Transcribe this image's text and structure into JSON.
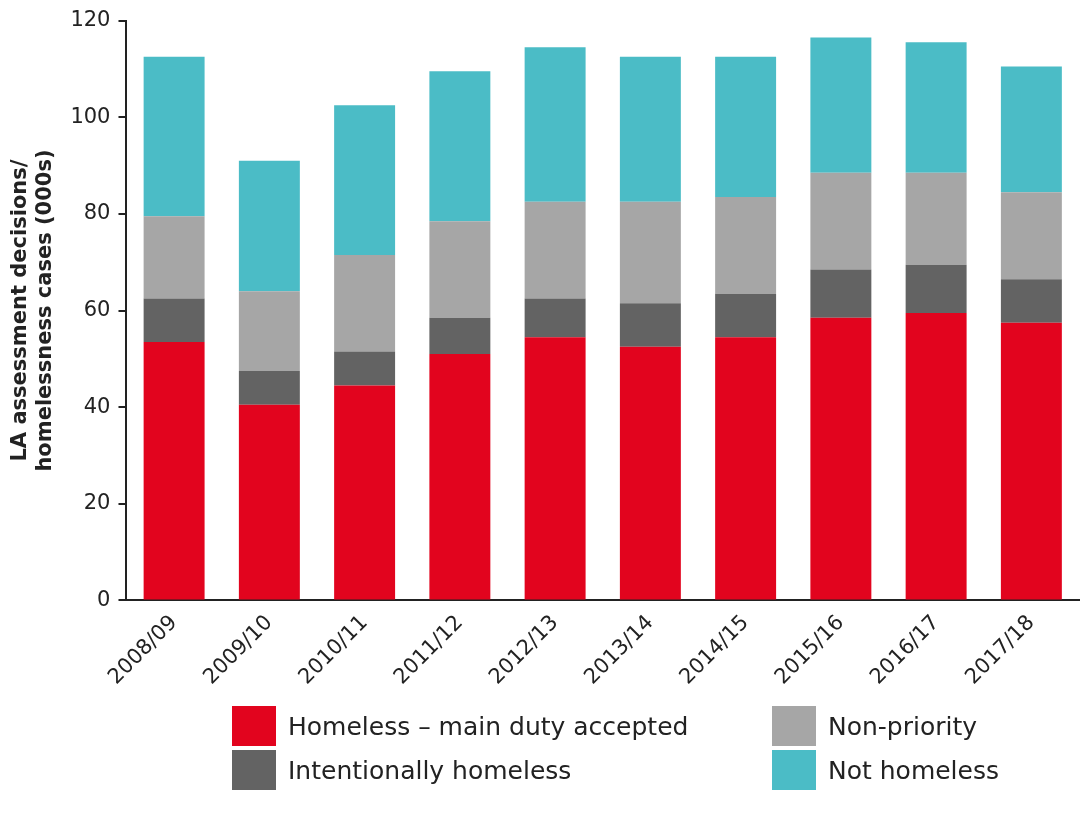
{
  "chart_data": {
    "type": "bar",
    "stacked": true,
    "ylabel": "LA assessment decisions/ homelessness cases (000s)",
    "categories": [
      "2008/09",
      "2009/10",
      "2010/11",
      "2011/12",
      "2012/13",
      "2013/14",
      "2014/15",
      "2015/16",
      "2016/17",
      "2017/18"
    ],
    "series": [
      {
        "name": "Homeless – main duty accepted",
        "color": "#e2041e",
        "values": [
          53.5,
          40.5,
          44.5,
          51,
          54.5,
          52.5,
          54.5,
          58.5,
          59.5,
          57.5
        ]
      },
      {
        "name": "Intentionally homeless",
        "color": "#636363",
        "values": [
          9,
          7,
          7,
          7.5,
          8,
          9,
          9,
          10,
          10,
          9
        ]
      },
      {
        "name": "Non-priority",
        "color": "#a6a6a6",
        "values": [
          17,
          16.5,
          20,
          20,
          20,
          21,
          20,
          20,
          19,
          18
        ]
      },
      {
        "name": "Not homeless",
        "color": "#4bbcc6",
        "values": [
          33,
          27,
          31,
          31,
          32,
          30,
          29,
          28,
          27,
          26
        ]
      }
    ],
    "ylim": [
      0,
      120
    ],
    "yticks": [
      0,
      20,
      40,
      60,
      80,
      100,
      120
    ],
    "grid": false,
    "legend": "bottom"
  }
}
